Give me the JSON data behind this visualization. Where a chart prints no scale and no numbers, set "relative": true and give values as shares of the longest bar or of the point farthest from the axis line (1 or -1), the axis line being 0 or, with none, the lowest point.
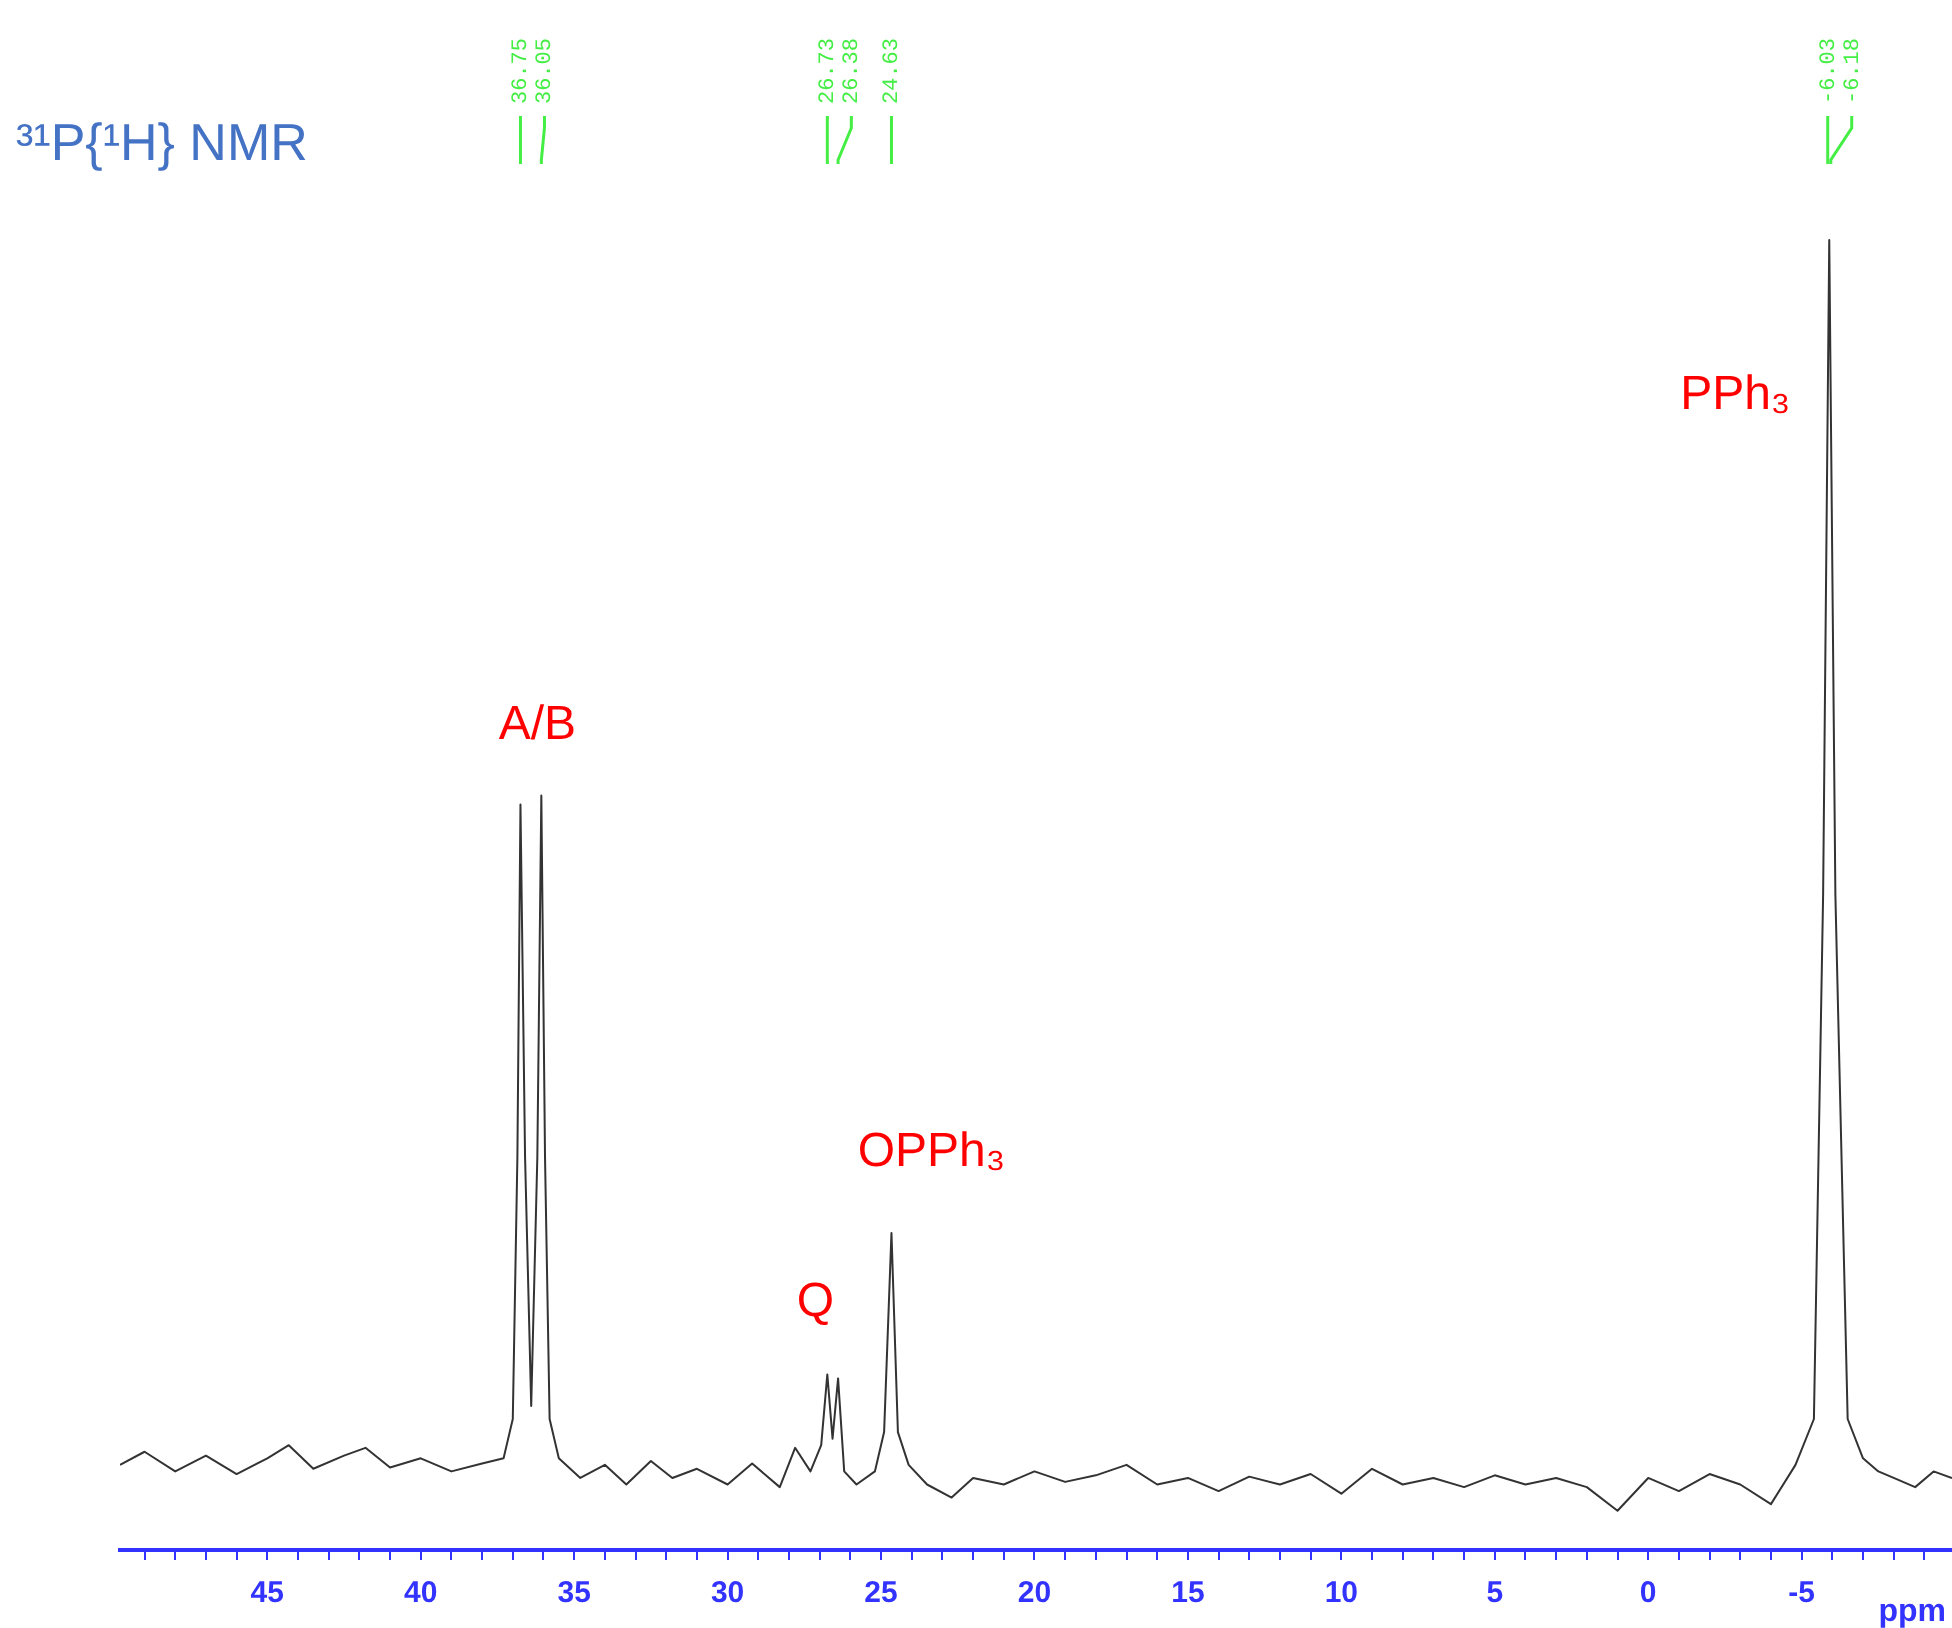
{
  "chart_data": {
    "type": "line",
    "title": "³¹P{¹H} NMR",
    "xlabel": "ppm",
    "relative": true,
    "color": "#333333",
    "xlim": [
      49.8,
      -9.9
    ],
    "xticks": [
      {
        "value": 49,
        "label": null
      },
      {
        "value": 48,
        "label": null
      },
      {
        "value": 47,
        "label": null
      },
      {
        "value": 46,
        "label": null
      },
      45,
      {
        "value": 44,
        "label": null
      },
      {
        "value": 43,
        "label": null
      },
      {
        "value": 42,
        "label": null
      },
      {
        "value": 41,
        "label": null
      },
      40,
      {
        "value": 39,
        "label": null
      },
      {
        "value": 38,
        "label": null
      },
      {
        "value": 37,
        "label": null
      },
      {
        "value": 36,
        "label": null
      },
      35,
      {
        "value": 34,
        "label": null
      },
      {
        "value": 33,
        "label": null
      },
      {
        "value": 32,
        "label": null
      },
      {
        "value": 31,
        "label": null
      },
      30,
      {
        "value": 29,
        "label": null
      },
      {
        "value": 28,
        "label": null
      },
      {
        "value": 27,
        "label": null
      },
      {
        "value": 26,
        "label": null
      },
      25,
      {
        "value": 24,
        "label": null
      },
      {
        "value": 23,
        "label": null
      },
      {
        "value": 22,
        "label": null
      },
      {
        "value": 21,
        "label": null
      },
      20,
      {
        "value": 19,
        "label": null
      },
      {
        "value": 18,
        "label": null
      },
      {
        "value": 17,
        "label": null
      },
      {
        "value": 16,
        "label": null
      },
      15,
      {
        "value": 14,
        "label": null
      },
      {
        "value": 13,
        "label": null
      },
      {
        "value": 12,
        "label": null
      },
      {
        "value": 11,
        "label": null
      },
      10,
      {
        "value": 9,
        "label": null
      },
      {
        "value": 8,
        "label": null
      },
      {
        "value": 7,
        "label": null
      },
      {
        "value": 6,
        "label": null
      },
      5,
      {
        "value": 4,
        "label": null
      },
      {
        "value": 3,
        "label": null
      },
      {
        "value": 2,
        "label": null
      },
      {
        "value": 1,
        "label": null
      },
      0,
      {
        "value": -1,
        "label": null
      },
      {
        "value": -2,
        "label": null
      },
      {
        "value": -3,
        "label": null
      },
      {
        "value": -4,
        "label": null
      },
      -5,
      {
        "value": -6,
        "label": null
      },
      {
        "value": -7,
        "label": null
      },
      {
        "value": -8,
        "label": null
      },
      {
        "value": -9,
        "label": null
      }
    ],
    "x": [
      49.8,
      49,
      48,
      47,
      46,
      45,
      44.3,
      43.5,
      42.5,
      41.8,
      41,
      40,
      39,
      38,
      37.3,
      37.0,
      36.85,
      36.75,
      36.6,
      36.4,
      36.2,
      36.07,
      35.95,
      35.8,
      35.5,
      34.8,
      34,
      33.3,
      32.5,
      31.8,
      31,
      30,
      29.2,
      28.3,
      27.8,
      27.3,
      26.95,
      26.75,
      26.58,
      26.4,
      26.2,
      25.8,
      25.2,
      24.9,
      24.66,
      24.45,
      24.1,
      23.5,
      22.7,
      22,
      21,
      20,
      19,
      18,
      17,
      16,
      15,
      14,
      13,
      12,
      11,
      10,
      9,
      8,
      7,
      6,
      5,
      4,
      3,
      2,
      1,
      0,
      -1,
      -2,
      -3,
      -4,
      -4.8,
      -5.4,
      -5.7,
      -5.9,
      -6.1,
      -6.5,
      -7,
      -7.5,
      -8,
      -8.7,
      -9.3,
      -9.9
    ],
    "values": [
      0.065,
      0.075,
      0.06,
      0.072,
      0.058,
      0.07,
      0.08,
      0.062,
      0.072,
      0.078,
      0.063,
      0.07,
      0.06,
      0.066,
      0.07,
      0.1,
      0.3,
      0.569,
      0.3,
      0.11,
      0.3,
      0.576,
      0.3,
      0.1,
      0.07,
      0.055,
      0.065,
      0.05,
      0.068,
      0.055,
      0.062,
      0.05,
      0.066,
      0.048,
      0.078,
      0.06,
      0.08,
      0.134,
      0.085,
      0.131,
      0.06,
      0.05,
      0.06,
      0.09,
      0.242,
      0.09,
      0.065,
      0.05,
      0.04,
      0.055,
      0.05,
      0.06,
      0.052,
      0.057,
      0.065,
      0.05,
      0.055,
      0.045,
      0.056,
      0.05,
      0.058,
      0.043,
      0.062,
      0.05,
      0.055,
      0.048,
      0.057,
      0.05,
      0.055,
      0.048,
      0.03,
      0.055,
      0.045,
      0.058,
      0.05,
      0.035,
      0.065,
      0.1,
      0.5,
      1,
      0.5,
      0.1,
      0.07,
      0.06,
      0.055,
      0.048,
      0.06,
      0.055
    ],
    "marker": "none",
    "annotations": [
      {
        "text": "A/B",
        "x": 36.07,
        "y": 0.576
      },
      {
        "text": "Q",
        "x": 26.75,
        "y": 0.134
      },
      {
        "text": "OPPh₃",
        "x": 24.66,
        "y": 0.242
      },
      {
        "text": "PPh₃",
        "x": -5.9,
        "y": 1
      },
      {
        "text": "36.75",
        "x": 36.75
      },
      {
        "text": "36.05",
        "x": 36.07
      },
      {
        "text": "26.73",
        "x": 26.75
      },
      {
        "text": "26.38",
        "x": 26.4
      },
      {
        "text": "24.63",
        "x": 24.66
      },
      {
        "text": "-6.03",
        "x": -5.85
      },
      {
        "text": "-6.18",
        "x": -5.95
      }
    ]
  }
}
